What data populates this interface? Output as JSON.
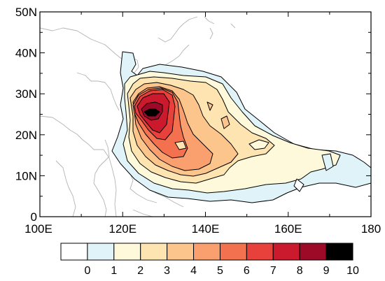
{
  "map": {
    "lat_labels": [
      "50N",
      "40N",
      "30N",
      "20N",
      "10N",
      "0"
    ],
    "lon_labels": [
      "100E",
      "120E",
      "140E",
      "160E",
      "180"
    ],
    "lat_values": [
      50,
      40,
      30,
      20,
      10,
      0
    ],
    "lon_values": [
      100,
      120,
      140,
      160,
      180
    ],
    "lon_range": [
      100,
      180
    ],
    "lat_range": [
      0,
      50
    ],
    "variable_shading": "filled contours, levels 0–10, maximum near 127E, 25N"
  },
  "colorbar": {
    "labels": [
      "0",
      "1",
      "2",
      "3",
      "4",
      "5",
      "6",
      "7",
      "8",
      "9",
      "10"
    ],
    "colors": [
      "#ffffff",
      "#e0f3f8",
      "#fff9dc",
      "#fde4b0",
      "#fcc58c",
      "#f9a06e",
      "#f4714f",
      "#e8403b",
      "#cb1a2d",
      "#9c0a28",
      "#000000"
    ]
  }
}
